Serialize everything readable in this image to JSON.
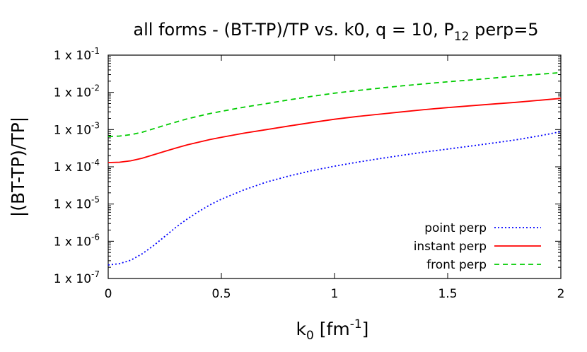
{
  "chart_data": {
    "type": "line",
    "title": {
      "main": "all forms - (BT-TP)/TP vs. k0, q = 10, P",
      "sub": "12",
      "tail": " perp=5"
    },
    "xlabel": {
      "main": "k",
      "sub": "0",
      "mid": " [fm",
      "sup": "-1",
      "tail": "]"
    },
    "ylabel": "|(BT-TP)/TP|",
    "xlim": [
      0,
      2
    ],
    "ylim": [
      1e-07,
      0.1
    ],
    "yscale": "log",
    "grid": false,
    "legend_position": "bottom-right",
    "x_ticks": [
      {
        "value": 0,
        "label": "0"
      },
      {
        "value": 0.5,
        "label": "0.5"
      },
      {
        "value": 1,
        "label": "1"
      },
      {
        "value": 1.5,
        "label": "1.5"
      },
      {
        "value": 2,
        "label": "2"
      }
    ],
    "y_ticks": [
      {
        "value": 0.1,
        "base": "1 x 10",
        "exp": "-1"
      },
      {
        "value": 0.01,
        "base": "1 x 10",
        "exp": "-2"
      },
      {
        "value": 0.001,
        "base": "1 x 10",
        "exp": "-3"
      },
      {
        "value": 0.0001,
        "base": "1 x 10",
        "exp": "-4"
      },
      {
        "value": 1e-05,
        "base": "1 x 10",
        "exp": "-5"
      },
      {
        "value": 1e-06,
        "base": "1 x 10",
        "exp": "-6"
      },
      {
        "value": 1e-07,
        "base": "1 x 10",
        "exp": "-7"
      }
    ],
    "series": [
      {
        "name": "point perp",
        "color": "#0000ff",
        "dash": "dotted",
        "x": [
          0,
          0.05,
          0.1,
          0.15,
          0.2,
          0.25,
          0.3,
          0.35,
          0.4,
          0.45,
          0.5,
          0.6,
          0.7,
          0.8,
          0.9,
          1.0,
          1.1,
          1.2,
          1.3,
          1.4,
          1.5,
          1.6,
          1.7,
          1.8,
          1.9,
          2.0
        ],
        "y": [
          2.3e-07,
          2.5e-07,
          3.1e-07,
          4.6e-07,
          7.6e-07,
          1.35e-06,
          2.4e-06,
          4e-06,
          6.3e-06,
          9.5e-06,
          1.35e-05,
          2.4e-05,
          3.9e-05,
          5.7e-05,
          7.9e-05,
          0.000104,
          0.000133,
          0.000166,
          0.000205,
          0.00025,
          0.0003,
          0.00036,
          0.000435,
          0.00053,
          0.00067,
          0.00088
        ]
      },
      {
        "name": "instant perp",
        "color": "#ff0000",
        "dash": "solid",
        "x": [
          0,
          0.05,
          0.1,
          0.15,
          0.2,
          0.25,
          0.3,
          0.35,
          0.4,
          0.45,
          0.5,
          0.6,
          0.7,
          0.8,
          0.9,
          1.0,
          1.1,
          1.2,
          1.3,
          1.4,
          1.5,
          1.6,
          1.7,
          1.8,
          1.9,
          2.0
        ],
        "y": [
          0.00013,
          0.000133,
          0.000145,
          0.00017,
          0.00021,
          0.00026,
          0.00032,
          0.00039,
          0.00046,
          0.00054,
          0.00062,
          0.0008,
          0.001,
          0.00125,
          0.00155,
          0.0019,
          0.00225,
          0.0026,
          0.003,
          0.00345,
          0.0039,
          0.00435,
          0.00485,
          0.0054,
          0.0061,
          0.0069
        ]
      },
      {
        "name": "front perp",
        "color": "#00cc00",
        "dash": "dashed",
        "x": [
          0,
          0.05,
          0.1,
          0.15,
          0.2,
          0.25,
          0.3,
          0.35,
          0.4,
          0.45,
          0.5,
          0.6,
          0.7,
          0.8,
          0.9,
          1.0,
          1.1,
          1.2,
          1.3,
          1.4,
          1.5,
          1.6,
          1.7,
          1.8,
          1.9,
          2.0
        ],
        "y": [
          0.00065,
          0.00067,
          0.00073,
          0.00085,
          0.00105,
          0.0013,
          0.0016,
          0.00195,
          0.0023,
          0.0027,
          0.0031,
          0.004,
          0.005,
          0.0063,
          0.0078,
          0.0095,
          0.0112,
          0.013,
          0.015,
          0.017,
          0.0192,
          0.0215,
          0.0242,
          0.0275,
          0.0305,
          0.034
        ]
      }
    ]
  }
}
